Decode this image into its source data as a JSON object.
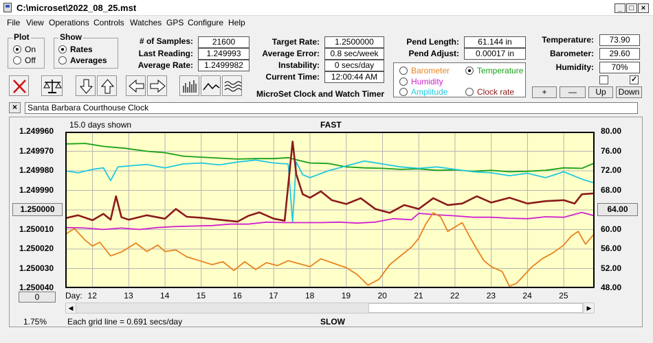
{
  "window": {
    "title": "C:\\microset\\2022_08_25.mst"
  },
  "menu": [
    "File",
    "View",
    "Operations",
    "Controls",
    "Watches",
    "GPS",
    "Configure",
    "Help"
  ],
  "plot_group": {
    "legend": "Plot",
    "options": [
      "On",
      "Off"
    ],
    "selected": "On"
  },
  "show_group": {
    "legend": "Show",
    "options": [
      "Rates",
      "Averages"
    ],
    "selected": "Rates"
  },
  "stats": {
    "samples_label": "# of Samples:",
    "samples": "21600",
    "last_label": "Last Reading:",
    "last": "1.249993",
    "avg_label": "Average Rate:",
    "avg": "1.2499982"
  },
  "rates": {
    "target_label": "Target Rate:",
    "target": "1.2500000",
    "error_label": "Average Error:",
    "error": "0.8 sec/week",
    "instab_label": "Instability:",
    "instab": "0 secs/day",
    "time_label": "Current Time:",
    "time": "12:00:44 AM"
  },
  "pend": {
    "length_label": "Pend Length:",
    "length": "61.144 in",
    "adjust_label": "Pend Adjust:",
    "adjust": "0.00017 in"
  },
  "env": {
    "temp_label": "Temperature:",
    "temp": "73.90",
    "baro_label": "Barometer:",
    "baro": "29.60",
    "hum_label": "Humidity:",
    "hum": "70%",
    "check1": false,
    "check2": true
  },
  "series_options": [
    {
      "label": "Barometer",
      "color": "#e8821e",
      "selected": false
    },
    {
      "label": "Temperature",
      "color": "#16a016",
      "selected": true
    },
    {
      "label": "Humidity",
      "color": "#d020d0",
      "selected": false
    },
    {
      "label": "Clock rate",
      "color": "#8b1a1a",
      "selected": false
    },
    {
      "label": "Amplitude",
      "color": "#20c8e0",
      "selected": false
    }
  ],
  "adjust_buttons": {
    "plus": "+",
    "minus": "—",
    "up": "Up",
    "down": "Down"
  },
  "app_title": "MicroSet Clock and Watch Timer",
  "clock_name": "Santa Barbara Courthouse Clock",
  "toolbar_icons": [
    "clear-icon",
    "balance-scale-icon",
    "down-arrow-icon",
    "up-arrow-icon",
    "left-arrow-icon",
    "right-arrow-icon",
    "bar-graph-icon",
    "line-graph-icon",
    "wave-graph-icon"
  ],
  "chart_data": {
    "type": "line",
    "top_label": "FAST",
    "bottom_label": "SLOW",
    "days_shown": "15.0 days shown",
    "grid_note": "Each grid line = 0.691 secs/day",
    "percent": "1.75%",
    "center_button": "1.250000",
    "right_button": "64.00",
    "bottom_left_button": "0",
    "xlabel": "Day:",
    "x_ticks": [
      "12",
      "13",
      "14",
      "15",
      "16",
      "17",
      "18",
      "19",
      "20",
      "21",
      "22",
      "23",
      "24",
      "25"
    ],
    "x_range": [
      11.25,
      25.85
    ],
    "left_ticks": [
      "1.249960",
      "1.249970",
      "1.249980",
      "1.249990",
      "",
      "1.250010",
      "1.250020",
      "1.250030",
      "1.250040"
    ],
    "left_ylim": [
      1.24996,
      1.25004
    ],
    "right_ticks": [
      "80.00",
      "76.00",
      "72.00",
      "68.00",
      "",
      "60.00",
      "56.00",
      "52.00",
      "48.00"
    ],
    "right_ylim": [
      80,
      48
    ],
    "grid": true,
    "background": "#ffffc8",
    "series": [
      {
        "color": "#16a016",
        "points": [
          [
            11.25,
            77.5
          ],
          [
            11.8,
            77.6
          ],
          [
            12.3,
            77.0
          ],
          [
            12.9,
            76.6
          ],
          [
            13.5,
            76.0
          ],
          [
            14.0,
            75.7
          ],
          [
            14.5,
            75.0
          ],
          [
            15.0,
            74.8
          ],
          [
            15.5,
            74.6
          ],
          [
            16.0,
            74.4
          ],
          [
            16.5,
            74.5
          ],
          [
            17.0,
            74.5
          ],
          [
            17.4,
            74.7
          ],
          [
            17.6,
            74.3
          ],
          [
            18.0,
            73.6
          ],
          [
            18.5,
            73.5
          ],
          [
            19.0,
            72.8
          ],
          [
            19.5,
            72.6
          ],
          [
            20.0,
            72.5
          ],
          [
            20.5,
            72.3
          ],
          [
            21.0,
            72.4
          ],
          [
            21.5,
            72.1
          ],
          [
            22.0,
            72.2
          ],
          [
            22.5,
            71.9
          ],
          [
            23.0,
            72.1
          ],
          [
            23.5,
            71.8
          ],
          [
            24.0,
            71.9
          ],
          [
            24.5,
            72.1
          ],
          [
            25.0,
            72.6
          ],
          [
            25.5,
            72.5
          ],
          [
            25.85,
            73.6
          ]
        ]
      },
      {
        "color": "#20c8e0",
        "points": [
          [
            11.25,
            72.0
          ],
          [
            11.6,
            71.6
          ],
          [
            12.0,
            72.3
          ],
          [
            12.3,
            72.6
          ],
          [
            12.5,
            70.0
          ],
          [
            12.7,
            72.8
          ],
          [
            13.0,
            73.0
          ],
          [
            13.5,
            73.3
          ],
          [
            14.0,
            72.6
          ],
          [
            14.5,
            73.4
          ],
          [
            15.0,
            73.6
          ],
          [
            15.5,
            73.2
          ],
          [
            16.0,
            73.8
          ],
          [
            16.5,
            74.2
          ],
          [
            17.0,
            73.6
          ],
          [
            17.4,
            73.4
          ],
          [
            17.52,
            61.5
          ],
          [
            17.62,
            73.8
          ],
          [
            17.8,
            71.2
          ],
          [
            18.0,
            70.6
          ],
          [
            18.5,
            72.0
          ],
          [
            19.0,
            73.0
          ],
          [
            19.5,
            74.0
          ],
          [
            20.0,
            73.4
          ],
          [
            20.5,
            72.8
          ],
          [
            21.0,
            72.5
          ],
          [
            21.5,
            72.8
          ],
          [
            22.0,
            72.3
          ],
          [
            22.5,
            71.8
          ],
          [
            23.0,
            71.6
          ],
          [
            23.5,
            71.0
          ],
          [
            24.0,
            71.5
          ],
          [
            24.5,
            70.6
          ],
          [
            25.0,
            71.8
          ],
          [
            25.5,
            70.3
          ],
          [
            25.85,
            69.5
          ]
        ]
      },
      {
        "color": "#8b1a1a",
        "points": [
          [
            11.25,
            62.3
          ],
          [
            11.6,
            62.9
          ],
          [
            12.0,
            61.9
          ],
          [
            12.3,
            63.2
          ],
          [
            12.5,
            62.0
          ],
          [
            12.65,
            66.8
          ],
          [
            12.8,
            62.5
          ],
          [
            13.0,
            62.0
          ],
          [
            13.5,
            62.9
          ],
          [
            14.0,
            62.2
          ],
          [
            14.3,
            64.2
          ],
          [
            14.6,
            62.6
          ],
          [
            15.0,
            62.4
          ],
          [
            15.5,
            62.0
          ],
          [
            16.0,
            61.6
          ],
          [
            16.3,
            62.8
          ],
          [
            16.6,
            63.5
          ],
          [
            17.0,
            62.2
          ],
          [
            17.3,
            61.8
          ],
          [
            17.52,
            78.0
          ],
          [
            17.62,
            71.3
          ],
          [
            17.8,
            67.2
          ],
          [
            18.0,
            66.5
          ],
          [
            18.3,
            67.8
          ],
          [
            18.6,
            66.0
          ],
          [
            19.0,
            65.2
          ],
          [
            19.4,
            66.4
          ],
          [
            19.8,
            64.2
          ],
          [
            20.2,
            63.4
          ],
          [
            20.6,
            65.0
          ],
          [
            21.0,
            64.2
          ],
          [
            21.4,
            66.4
          ],
          [
            21.8,
            65.0
          ],
          [
            22.2,
            65.3
          ],
          [
            22.6,
            66.8
          ],
          [
            23.0,
            65.5
          ],
          [
            23.5,
            66.5
          ],
          [
            24.0,
            65.3
          ],
          [
            24.5,
            65.8
          ],
          [
            25.0,
            66.0
          ],
          [
            25.3,
            65.3
          ],
          [
            25.5,
            67.2
          ],
          [
            25.85,
            67.4
          ]
        ]
      },
      {
        "color": "#d020d0",
        "points": [
          [
            11.25,
            60.4
          ],
          [
            11.8,
            60.3
          ],
          [
            12.3,
            60.0
          ],
          [
            12.8,
            60.3
          ],
          [
            13.3,
            60.0
          ],
          [
            13.8,
            60.4
          ],
          [
            14.3,
            60.6
          ],
          [
            14.8,
            60.7
          ],
          [
            15.3,
            60.8
          ],
          [
            15.8,
            61.1
          ],
          [
            16.3,
            61.1
          ],
          [
            16.8,
            61.5
          ],
          [
            17.3,
            61.4
          ],
          [
            17.8,
            61.4
          ],
          [
            18.3,
            61.4
          ],
          [
            18.8,
            61.5
          ],
          [
            19.3,
            61.3
          ],
          [
            19.8,
            61.5
          ],
          [
            20.3,
            62.2
          ],
          [
            20.8,
            62.0
          ],
          [
            21.0,
            63.3
          ],
          [
            21.5,
            63.0
          ],
          [
            22.0,
            62.8
          ],
          [
            22.5,
            62.5
          ],
          [
            23.0,
            62.5
          ],
          [
            23.5,
            62.3
          ],
          [
            24.0,
            62.2
          ],
          [
            24.5,
            62.6
          ],
          [
            25.0,
            62.5
          ],
          [
            25.5,
            63.5
          ],
          [
            25.85,
            62.8
          ]
        ]
      },
      {
        "color": "#e8821e",
        "points": [
          [
            11.25,
            59.0
          ],
          [
            11.5,
            60.2
          ],
          [
            11.8,
            57.8
          ],
          [
            12.0,
            56.6
          ],
          [
            12.2,
            57.4
          ],
          [
            12.5,
            54.6
          ],
          [
            12.8,
            55.4
          ],
          [
            13.2,
            57.2
          ],
          [
            13.5,
            55.5
          ],
          [
            13.8,
            56.8
          ],
          [
            14.0,
            55.5
          ],
          [
            14.3,
            55.8
          ],
          [
            14.6,
            54.4
          ],
          [
            15.0,
            53.5
          ],
          [
            15.3,
            52.8
          ],
          [
            15.6,
            53.4
          ],
          [
            15.9,
            51.6
          ],
          [
            16.2,
            53.4
          ],
          [
            16.5,
            51.8
          ],
          [
            16.8,
            53.2
          ],
          [
            17.1,
            52.6
          ],
          [
            17.4,
            53.6
          ],
          [
            17.7,
            53.0
          ],
          [
            18.0,
            52.4
          ],
          [
            18.3,
            54.0
          ],
          [
            18.6,
            53.2
          ],
          [
            19.0,
            52.2
          ],
          [
            19.3,
            50.8
          ],
          [
            19.6,
            48.6
          ],
          [
            19.9,
            49.8
          ],
          [
            20.2,
            52.8
          ],
          [
            20.5,
            54.6
          ],
          [
            20.8,
            56.4
          ],
          [
            21.0,
            58.2
          ],
          [
            21.2,
            61.2
          ],
          [
            21.4,
            63.4
          ],
          [
            21.6,
            62.6
          ],
          [
            21.8,
            59.6
          ],
          [
            22.0,
            60.5
          ],
          [
            22.2,
            61.4
          ],
          [
            22.4,
            58.6
          ],
          [
            22.6,
            56.0
          ],
          [
            22.8,
            53.6
          ],
          [
            23.0,
            52.4
          ],
          [
            23.3,
            51.4
          ],
          [
            23.5,
            48.4
          ],
          [
            23.7,
            49.0
          ],
          [
            23.9,
            50.6
          ],
          [
            24.1,
            52.2
          ],
          [
            24.4,
            54.0
          ],
          [
            24.7,
            55.2
          ],
          [
            25.0,
            56.8
          ],
          [
            25.2,
            58.6
          ],
          [
            25.4,
            59.6
          ],
          [
            25.6,
            57.0
          ],
          [
            25.85,
            59.2
          ]
        ]
      }
    ]
  }
}
